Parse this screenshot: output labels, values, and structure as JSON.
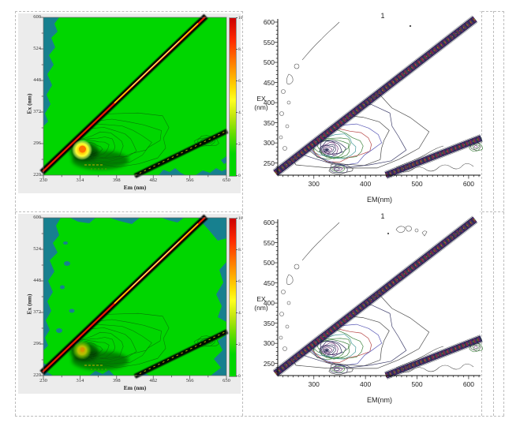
{
  "grid": {
    "border_color": "#bdbdbd"
  },
  "rows": [
    {
      "right_title": "1",
      "left_variant": "bright"
    },
    {
      "right_title": "1",
      "left_variant": "dim"
    }
  ],
  "figures": {
    "left": {
      "ylabel": "Ex (nm)",
      "xlabel": "Em (nm)",
      "y_ticks": [
        "600",
        "524",
        "448",
        "372",
        "296",
        "220"
      ],
      "x_ticks": [
        "230",
        "314",
        "398",
        "482",
        "566",
        "650"
      ],
      "colorbar_ticks": [
        "10",
        "8.",
        "6.",
        "4.",
        "2.",
        "0"
      ],
      "colors": {
        "plot_background": "#00d600",
        "low_signal_teal": "#17808f",
        "band_black": "#050505",
        "band_red_core": "#e81800",
        "band_yellow_highlight": "#ffee00",
        "contour_line_green": "#0b5c0b",
        "figure_background": "#ececec"
      },
      "colorbar_gradient": [
        {
          "c": "#cc0000",
          "p": 0
        },
        {
          "c": "#ff2a00",
          "p": 14
        },
        {
          "c": "#ff8800",
          "p": 30
        },
        {
          "c": "#ffd800",
          "p": 44
        },
        {
          "c": "#ffff20",
          "p": 52
        },
        {
          "c": "#c2e610",
          "p": 62
        },
        {
          "c": "#5fdc00",
          "p": 74
        },
        {
          "c": "#00d600",
          "p": 86
        },
        {
          "c": "#00d600",
          "p": 100
        }
      ]
    },
    "right": {
      "ylabel_line1": "EX",
      "ylabel_line2": "(nm)",
      "xlabel": "EM(nm)",
      "y_ticks": [
        "600",
        "550",
        "500",
        "450",
        "400",
        "350",
        "300",
        "250"
      ],
      "x_ticks": [
        "300",
        "400",
        "500",
        "600"
      ],
      "colors": {
        "axis": "#111111",
        "ring_navy": "#262655",
        "ring_purple": "#6a2a72",
        "ring_green": "#2f7a2f",
        "ring_cyan": "#2f8f8f",
        "ring_red": "#b03434",
        "ring_blue": "#4a4ab0",
        "ring_dark": "#3a3a3a",
        "band_navy": "#1d1d4c"
      }
    }
  },
  "chart_data": [
    {
      "panel": "top-left",
      "type": "heatmap",
      "title": "",
      "xlabel": "Em (nm)",
      "ylabel": "Ex (nm)",
      "xlim": [
        230,
        650
      ],
      "ylim": [
        220,
        600
      ],
      "x_ticks": [
        230,
        314,
        398,
        482,
        566,
        650
      ],
      "y_ticks": [
        220,
        296,
        372,
        448,
        524,
        600
      ],
      "colorbar_range": [
        0,
        10
      ],
      "colorbar_ticks": [
        0,
        2,
        4,
        6,
        8,
        10
      ],
      "background_intensity": 1,
      "features": [
        {
          "name": "first-order Rayleigh scatter line",
          "relation": "Em = Ex",
          "intensity": 10
        },
        {
          "name": "second-order Rayleigh scatter line",
          "relation": "Em = 2*Ex",
          "intensity": 3
        },
        {
          "name": "fluorescence peak (bright yellow-orange spot)",
          "ex": 282,
          "em": 318,
          "intensity": 5
        },
        {
          "name": "secondary peak",
          "ex": 235,
          "em": 345,
          "intensity": 2.5
        },
        {
          "name": "low-signal teal patches",
          "location": "left edge, bottom edge, bottom-right corner",
          "intensity": 0
        }
      ]
    },
    {
      "panel": "top-right",
      "type": "contour",
      "title": "1",
      "xlabel": "EM(nm)",
      "ylabel": "EX (nm)",
      "xlim": [
        230,
        620
      ],
      "ylim": [
        220,
        600
      ],
      "x_ticks": [
        300,
        400,
        500,
        600
      ],
      "y_ticks": [
        250,
        300,
        350,
        400,
        450,
        500,
        550,
        600
      ],
      "grid": false,
      "features": [
        {
          "name": "first-order Rayleigh scatter band (speckled)",
          "relation": "Em = Ex"
        },
        {
          "name": "second-order Rayleigh scatter band (speckled)",
          "relation": "Em = 2*Ex"
        },
        {
          "name": "dense concentric contour peak",
          "ex": 283,
          "em": 325,
          "outer_contours_reach_em": 520,
          "outer_contours_reach_ex": 420,
          "contour_colors": [
            "navy",
            "purple",
            "green",
            "cyan",
            "red",
            "blue",
            "black"
          ]
        },
        {
          "name": "secondary small contour peak",
          "ex": 235,
          "em": 345
        },
        {
          "name": "small contour feature at right edge",
          "ex": 290,
          "em": 612
        },
        {
          "name": "scattered small contours along left side",
          "ex_range": [
            300,
            600
          ],
          "em_range": [
            230,
            280
          ]
        }
      ]
    },
    {
      "panel": "bottom-left",
      "type": "heatmap",
      "title": "",
      "xlabel": "Em (nm)",
      "ylabel": "Ex (nm)",
      "xlim": [
        230,
        650
      ],
      "ylim": [
        220,
        600
      ],
      "x_ticks": [
        230,
        314,
        398,
        482,
        566,
        650
      ],
      "y_ticks": [
        220,
        296,
        372,
        448,
        524,
        600
      ],
      "colorbar_range": [
        0,
        10
      ],
      "colorbar_ticks": [
        0,
        2,
        4,
        6,
        8,
        10
      ],
      "background_intensity": 1,
      "features": [
        {
          "name": "first-order Rayleigh scatter line",
          "relation": "Em = Ex",
          "intensity": 10
        },
        {
          "name": "second-order Rayleigh scatter line",
          "relation": "Em = 2*Ex",
          "intensity": 3
        },
        {
          "name": "fluorescence peak (dimmer olive-yellow spot)",
          "ex": 282,
          "em": 318,
          "intensity": 3.5
        },
        {
          "name": "secondary peak",
          "ex": 235,
          "em": 345,
          "intensity": 2
        },
        {
          "name": "low-signal teal patches",
          "location": "all edges, top-right region, bottom corners",
          "intensity": 0
        }
      ]
    },
    {
      "panel": "bottom-right",
      "type": "contour",
      "title": "1",
      "xlabel": "EM(nm)",
      "ylabel": "EX (nm)",
      "xlim": [
        230,
        620
      ],
      "ylim": [
        220,
        600
      ],
      "x_ticks": [
        300,
        400,
        500,
        600
      ],
      "y_ticks": [
        250,
        300,
        350,
        400,
        450,
        500,
        550,
        600
      ],
      "grid": false,
      "features": [
        {
          "name": "first-order Rayleigh scatter band (speckled)",
          "relation": "Em = Ex"
        },
        {
          "name": "second-order Rayleigh scatter band (speckled)",
          "relation": "Em = 2*Ex"
        },
        {
          "name": "dense concentric contour peak",
          "ex": 283,
          "em": 325,
          "outer_contours_reach_em": 520,
          "outer_contours_reach_ex": 420,
          "contour_colors": [
            "navy",
            "purple",
            "green",
            "cyan",
            "red",
            "blue",
            "black"
          ]
        },
        {
          "name": "secondary small contour peak",
          "ex": 235,
          "em": 345
        },
        {
          "name": "small contour feature at right edge",
          "ex": 290,
          "em": 612
        },
        {
          "name": "small scattered contours near top of plot",
          "ex": 590,
          "em_range": [
            440,
            520
          ]
        }
      ]
    }
  ]
}
